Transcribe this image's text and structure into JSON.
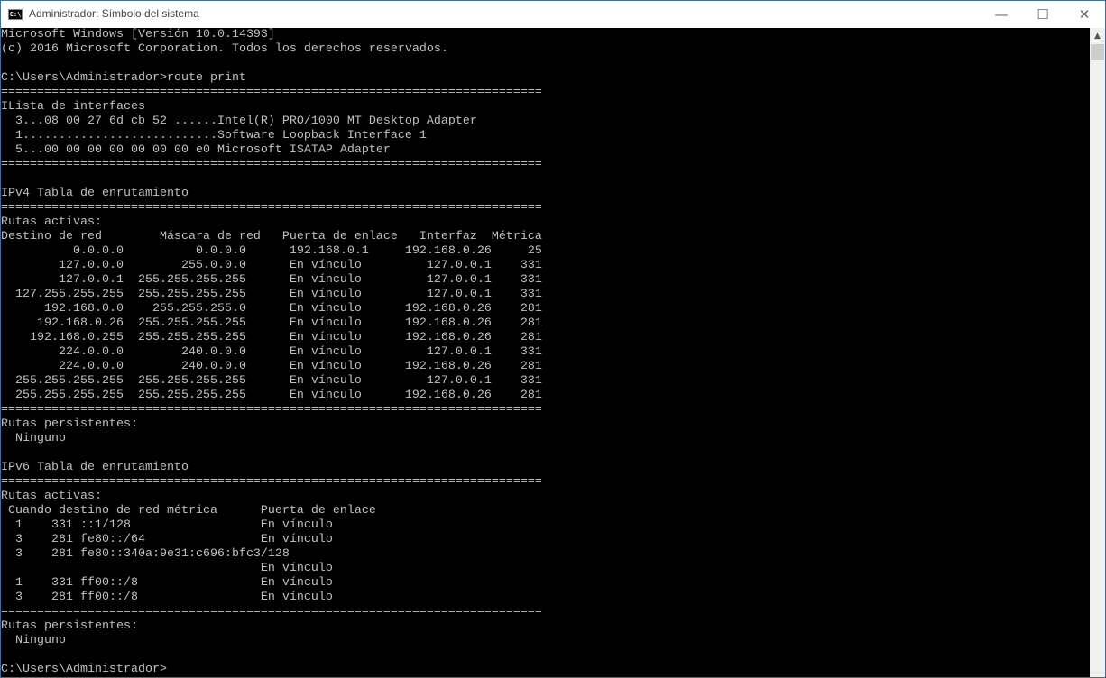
{
  "window": {
    "title": "Administrador: Símbolo del sistema",
    "icon": "cmd-icon",
    "icon_text": "C:\\",
    "controls": {
      "minimize": "—",
      "maximize": "☐",
      "close": "✕"
    }
  },
  "colors": {
    "background": "#000000",
    "text": "#c0c0c0"
  },
  "scrollbar": {
    "position": 0
  },
  "console": {
    "lines": [
      "Microsoft Windows [Versión 10.0.14393]",
      "(c) 2016 Microsoft Corporation. Todos los derechos reservados.",
      "",
      "C:\\Users\\Administrador>route print",
      "===========================================================================",
      "ILista de interfaces",
      "  3...08 00 27 6d cb 52 ......Intel(R) PRO/1000 MT Desktop Adapter",
      "  1...........................Software Loopback Interface 1",
      "  5...00 00 00 00 00 00 00 e0 Microsoft ISATAP Adapter",
      "===========================================================================",
      "",
      "IPv4 Tabla de enrutamiento",
      "===========================================================================",
      "Rutas activas:",
      "Destino de red        Máscara de red   Puerta de enlace   Interfaz  Métrica",
      "          0.0.0.0          0.0.0.0      192.168.0.1     192.168.0.26     25",
      "        127.0.0.0        255.0.0.0      En vínculo         127.0.0.1    331",
      "        127.0.0.1  255.255.255.255      En vínculo         127.0.0.1    331",
      "  127.255.255.255  255.255.255.255      En vínculo         127.0.0.1    331",
      "      192.168.0.0    255.255.255.0      En vínculo      192.168.0.26    281",
      "     192.168.0.26  255.255.255.255      En vínculo      192.168.0.26    281",
      "    192.168.0.255  255.255.255.255      En vínculo      192.168.0.26    281",
      "        224.0.0.0        240.0.0.0      En vínculo         127.0.0.1    331",
      "        224.0.0.0        240.0.0.0      En vínculo      192.168.0.26    281",
      "  255.255.255.255  255.255.255.255      En vínculo         127.0.0.1    331",
      "  255.255.255.255  255.255.255.255      En vínculo      192.168.0.26    281",
      "===========================================================================",
      "Rutas persistentes:",
      "  Ninguno",
      "",
      "IPv6 Tabla de enrutamiento",
      "===========================================================================",
      "Rutas activas:",
      " Cuando destino de red métrica      Puerta de enlace",
      "  1    331 ::1/128                  En vínculo",
      "  3    281 fe80::/64                En vínculo",
      "  3    281 fe80::340a:9e31:c696:bfc3/128",
      "                                    En vínculo",
      "  1    331 ff00::/8                 En vínculo",
      "  3    281 ff00::/8                 En vínculo",
      "===========================================================================",
      "Rutas persistentes:",
      "  Ninguno",
      "",
      "C:\\Users\\Administrador>"
    ]
  }
}
